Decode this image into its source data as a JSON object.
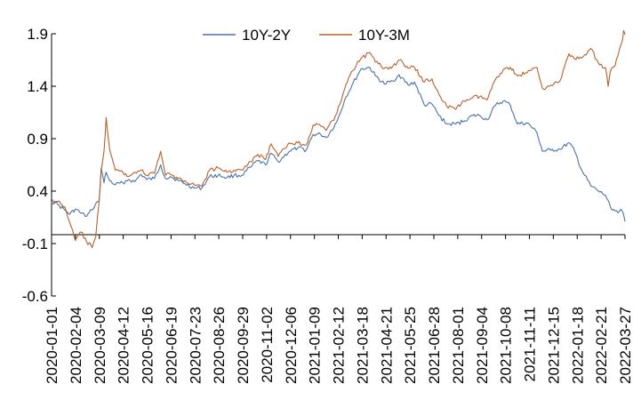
{
  "chart_data": {
    "type": "line",
    "title": "",
    "xlabel": "",
    "ylabel": "",
    "ylim": [
      -0.6,
      1.9
    ],
    "yticks": [
      1.9,
      1.4,
      0.9,
      0.4,
      -0.1,
      -0.6
    ],
    "ytick_labels": [
      "1.9",
      "1.4",
      "0.9",
      "0.4",
      "-0.1",
      "-0.6"
    ],
    "x_start": "2020-01-01",
    "x_end": "2022-03-31",
    "xtick_labels": [
      "2020-01-01",
      "2020-02-04",
      "2020-03-09",
      "2020-04-12",
      "2020-05-16",
      "2020-06-19",
      "2020-07-23",
      "2020-08-26",
      "2020-09-29",
      "2020-11-02",
      "2020-12-06",
      "2021-01-09",
      "2021-02-12",
      "2021-03-18",
      "2021-04-21",
      "2021-05-25",
      "2021-06-28",
      "2021-08-01",
      "2021-09-04",
      "2021-10-08",
      "2021-11-11",
      "2021-12-15",
      "2022-01-18",
      "2022-02-21",
      "2022-03-27"
    ],
    "legend_position": "top-center",
    "series": [
      {
        "name": "10Y-2Y",
        "color": "#4a72a8",
        "points": [
          [
            "2020-01-01",
            0.33
          ],
          [
            "2020-01-10",
            0.27
          ],
          [
            "2020-01-20",
            0.22
          ],
          [
            "2020-01-27",
            0.18
          ],
          [
            "2020-02-04",
            0.23
          ],
          [
            "2020-02-12",
            0.19
          ],
          [
            "2020-02-20",
            0.16
          ],
          [
            "2020-02-28",
            0.22
          ],
          [
            "2020-03-04",
            0.28
          ],
          [
            "2020-03-09",
            0.3
          ],
          [
            "2020-03-12",
            0.62
          ],
          [
            "2020-03-16",
            0.48
          ],
          [
            "2020-03-19",
            0.58
          ],
          [
            "2020-03-24",
            0.5
          ],
          [
            "2020-04-01",
            0.46
          ],
          [
            "2020-04-12",
            0.48
          ],
          [
            "2020-04-20",
            0.51
          ],
          [
            "2020-04-29",
            0.49
          ],
          [
            "2020-05-08",
            0.56
          ],
          [
            "2020-05-16",
            0.51
          ],
          [
            "2020-05-27",
            0.52
          ],
          [
            "2020-06-05",
            0.65
          ],
          [
            "2020-06-12",
            0.52
          ],
          [
            "2020-06-19",
            0.54
          ],
          [
            "2020-06-30",
            0.5
          ],
          [
            "2020-07-10",
            0.47
          ],
          [
            "2020-07-23",
            0.43
          ],
          [
            "2020-08-03",
            0.43
          ],
          [
            "2020-08-14",
            0.54
          ],
          [
            "2020-08-26",
            0.55
          ],
          [
            "2020-09-08",
            0.53
          ],
          [
            "2020-09-18",
            0.55
          ],
          [
            "2020-09-29",
            0.55
          ],
          [
            "2020-10-12",
            0.63
          ],
          [
            "2020-10-22",
            0.69
          ],
          [
            "2020-11-02",
            0.65
          ],
          [
            "2020-11-10",
            0.76
          ],
          [
            "2020-11-20",
            0.68
          ],
          [
            "2020-12-06",
            0.78
          ],
          [
            "2020-12-18",
            0.81
          ],
          [
            "2020-12-30",
            0.79
          ],
          [
            "2021-01-09",
            0.94
          ],
          [
            "2021-01-20",
            0.94
          ],
          [
            "2021-01-28",
            0.91
          ],
          [
            "2021-02-12",
            1.06
          ],
          [
            "2021-02-25",
            1.3
          ],
          [
            "2021-03-05",
            1.4
          ],
          [
            "2021-03-18",
            1.56
          ],
          [
            "2021-03-31",
            1.58
          ],
          [
            "2021-04-08",
            1.5
          ],
          [
            "2021-04-21",
            1.42
          ],
          [
            "2021-05-03",
            1.45
          ],
          [
            "2021-05-12",
            1.51
          ],
          [
            "2021-05-25",
            1.41
          ],
          [
            "2021-06-03",
            1.44
          ],
          [
            "2021-06-17",
            1.22
          ],
          [
            "2021-06-28",
            1.23
          ],
          [
            "2021-07-08",
            1.12
          ],
          [
            "2021-07-19",
            1.04
          ],
          [
            "2021-08-01",
            1.04
          ],
          [
            "2021-08-13",
            1.07
          ],
          [
            "2021-08-25",
            1.12
          ],
          [
            "2021-09-04",
            1.12
          ],
          [
            "2021-09-15",
            1.08
          ],
          [
            "2021-09-27",
            1.22
          ],
          [
            "2021-10-08",
            1.26
          ],
          [
            "2021-10-18",
            1.22
          ],
          [
            "2021-10-28",
            1.04
          ],
          [
            "2021-11-11",
            1.05
          ],
          [
            "2021-11-25",
            0.96
          ],
          [
            "2021-12-03",
            0.78
          ],
          [
            "2021-12-15",
            0.79
          ],
          [
            "2021-12-28",
            0.8
          ],
          [
            "2022-01-10",
            0.86
          ],
          [
            "2022-01-18",
            0.78
          ],
          [
            "2022-01-28",
            0.6
          ],
          [
            "2022-02-10",
            0.45
          ],
          [
            "2022-02-21",
            0.4
          ],
          [
            "2022-03-03",
            0.36
          ],
          [
            "2022-03-10",
            0.25
          ],
          [
            "2022-03-17",
            0.21
          ],
          [
            "2022-03-27",
            0.21
          ],
          [
            "2022-03-31",
            0.11
          ]
        ]
      },
      {
        "name": "10Y-3M",
        "color": "#b8602c",
        "points": [
          [
            "2020-01-01",
            0.29
          ],
          [
            "2020-01-10",
            0.3
          ],
          [
            "2020-01-20",
            0.25
          ],
          [
            "2020-01-27",
            0.1
          ],
          [
            "2020-02-04",
            -0.07
          ],
          [
            "2020-02-12",
            0.01
          ],
          [
            "2020-02-20",
            -0.08
          ],
          [
            "2020-02-28",
            -0.14
          ],
          [
            "2020-03-04",
            -0.04
          ],
          [
            "2020-03-09",
            0.3
          ],
          [
            "2020-03-12",
            0.6
          ],
          [
            "2020-03-16",
            0.78
          ],
          [
            "2020-03-19",
            1.1
          ],
          [
            "2020-03-24",
            0.8
          ],
          [
            "2020-04-01",
            0.6
          ],
          [
            "2020-04-12",
            0.58
          ],
          [
            "2020-04-20",
            0.54
          ],
          [
            "2020-04-29",
            0.58
          ],
          [
            "2020-05-08",
            0.6
          ],
          [
            "2020-05-16",
            0.55
          ],
          [
            "2020-05-27",
            0.57
          ],
          [
            "2020-06-05",
            0.78
          ],
          [
            "2020-06-12",
            0.55
          ],
          [
            "2020-06-19",
            0.56
          ],
          [
            "2020-06-30",
            0.52
          ],
          [
            "2020-07-10",
            0.5
          ],
          [
            "2020-07-23",
            0.46
          ],
          [
            "2020-08-03",
            0.45
          ],
          [
            "2020-08-14",
            0.6
          ],
          [
            "2020-08-26",
            0.62
          ],
          [
            "2020-09-08",
            0.58
          ],
          [
            "2020-09-18",
            0.6
          ],
          [
            "2020-09-29",
            0.6
          ],
          [
            "2020-10-12",
            0.68
          ],
          [
            "2020-10-22",
            0.75
          ],
          [
            "2020-11-02",
            0.7
          ],
          [
            "2020-11-10",
            0.85
          ],
          [
            "2020-11-20",
            0.73
          ],
          [
            "2020-12-06",
            0.86
          ],
          [
            "2020-12-18",
            0.86
          ],
          [
            "2020-12-30",
            0.84
          ],
          [
            "2021-01-09",
            1.03
          ],
          [
            "2021-01-20",
            1.02
          ],
          [
            "2021-01-28",
            0.98
          ],
          [
            "2021-02-12",
            1.14
          ],
          [
            "2021-02-25",
            1.42
          ],
          [
            "2021-03-05",
            1.54
          ],
          [
            "2021-03-18",
            1.66
          ],
          [
            "2021-03-31",
            1.72
          ],
          [
            "2021-04-08",
            1.63
          ],
          [
            "2021-04-21",
            1.57
          ],
          [
            "2021-05-03",
            1.59
          ],
          [
            "2021-05-12",
            1.65
          ],
          [
            "2021-05-25",
            1.57
          ],
          [
            "2021-06-03",
            1.58
          ],
          [
            "2021-06-17",
            1.44
          ],
          [
            "2021-06-28",
            1.47
          ],
          [
            "2021-07-08",
            1.32
          ],
          [
            "2021-07-19",
            1.21
          ],
          [
            "2021-08-01",
            1.18
          ],
          [
            "2021-08-13",
            1.26
          ],
          [
            "2021-08-25",
            1.29
          ],
          [
            "2021-09-04",
            1.3
          ],
          [
            "2021-09-15",
            1.27
          ],
          [
            "2021-09-27",
            1.47
          ],
          [
            "2021-10-08",
            1.56
          ],
          [
            "2021-10-18",
            1.58
          ],
          [
            "2021-10-28",
            1.5
          ],
          [
            "2021-11-11",
            1.53
          ],
          [
            "2021-11-25",
            1.58
          ],
          [
            "2021-12-03",
            1.38
          ],
          [
            "2021-12-15",
            1.41
          ],
          [
            "2021-12-28",
            1.45
          ],
          [
            "2022-01-10",
            1.71
          ],
          [
            "2022-01-18",
            1.66
          ],
          [
            "2022-01-28",
            1.67
          ],
          [
            "2022-02-10",
            1.76
          ],
          [
            "2022-02-21",
            1.62
          ],
          [
            "2022-03-03",
            1.58
          ],
          [
            "2022-03-07",
            1.4
          ],
          [
            "2022-03-10",
            1.54
          ],
          [
            "2022-03-17",
            1.6
          ],
          [
            "2022-03-27",
            1.83
          ],
          [
            "2022-03-29",
            1.93
          ],
          [
            "2022-03-31",
            1.89
          ]
        ]
      }
    ]
  }
}
